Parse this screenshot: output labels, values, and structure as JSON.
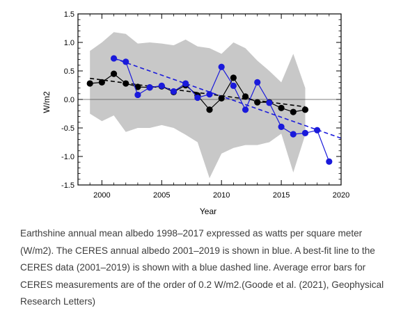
{
  "chart_data": {
    "type": "line",
    "title": "",
    "xlabel": "Year",
    "ylabel": "W/m2",
    "xlim": [
      1998,
      2020
    ],
    "ylim": [
      -1.5,
      1.5
    ],
    "xticks": [
      2000,
      2005,
      2010,
      2015,
      2020
    ],
    "xtick_labels": [
      "2000",
      "2005",
      "2010",
      "2015",
      "2020"
    ],
    "yticks": [
      1.5,
      1.0,
      0.5,
      0.0,
      -0.5,
      -1.0,
      -1.5
    ],
    "ytick_labels": [
      "1.5",
      "1.0",
      "0.5",
      "0.0",
      "-0.5",
      "-1.0",
      "-1.5"
    ],
    "grid": false,
    "zero_line": true,
    "series": [
      {
        "color": "#000000",
        "x": [
          1999,
          2000,
          2001,
          2002,
          2003,
          2004,
          2005,
          2006,
          2007,
          2008,
          2009,
          2010,
          2011,
          2012,
          2013,
          2014,
          2015,
          2016,
          2017
        ],
        "y": [
          0.28,
          0.3,
          0.45,
          0.28,
          0.22,
          0.21,
          0.23,
          0.13,
          0.25,
          0.07,
          -0.18,
          0.02,
          0.38,
          0.05,
          -0.05,
          -0.05,
          -0.15,
          -0.22,
          -0.18
        ]
      },
      {
        "color": "#1a1adb",
        "x": [
          2001,
          2002,
          2003,
          2004,
          2005,
          2006,
          2007,
          2008,
          2009,
          2010,
          2011,
          2012,
          2013,
          2014,
          2015,
          2016,
          2017,
          2018,
          2019
        ],
        "y": [
          0.72,
          0.66,
          0.08,
          0.21,
          0.24,
          0.14,
          0.28,
          0.03,
          0.09,
          0.57,
          0.24,
          -0.18,
          0.3,
          -0.06,
          -0.48,
          -0.61,
          -0.59,
          -0.54,
          -1.09
        ]
      }
    ],
    "trend_lines": [
      {
        "color": "#000000",
        "style": "dashed",
        "x": [
          1999,
          2017
        ],
        "y": [
          0.37,
          -0.13
        ]
      },
      {
        "color": "#1a1adb",
        "style": "dashed",
        "x": [
          2001,
          2020
        ],
        "y": [
          0.72,
          -0.68
        ]
      }
    ],
    "uncertainty_band": {
      "color": "#c8c8c8",
      "x": [
        1999,
        2000,
        2001,
        2002,
        2003,
        2004,
        2005,
        2006,
        2007,
        2008,
        2009,
        2010,
        2011,
        2012,
        2013,
        2014,
        2015,
        2016,
        2017
      ],
      "upper": [
        0.85,
        1.0,
        1.18,
        1.15,
        0.98,
        1.0,
        0.98,
        0.95,
        1.05,
        0.93,
        0.9,
        0.8,
        1.0,
        0.9,
        0.68,
        0.5,
        0.3,
        0.8,
        0.2
      ],
      "lower": [
        -0.25,
        -0.38,
        -0.28,
        -0.57,
        -0.5,
        -0.5,
        -0.45,
        -0.5,
        -0.62,
        -0.75,
        -1.38,
        -0.95,
        -0.85,
        -0.8,
        -0.8,
        -0.75,
        -0.6,
        -1.28,
        -0.62
      ]
    }
  },
  "caption": "Earthshine annual mean albedo 1998–2017 expressed as watts per square meter (W/m2). The CERES annual albedo 2001–2019 is shown in blue. A best-fit line to the CERES data (2001–2019) is shown with a blue dashed line. Average error bars for CERES measurements are of the order of 0.2 W/m2.(Goode et al. (2021), Geophysical Research Letters)"
}
